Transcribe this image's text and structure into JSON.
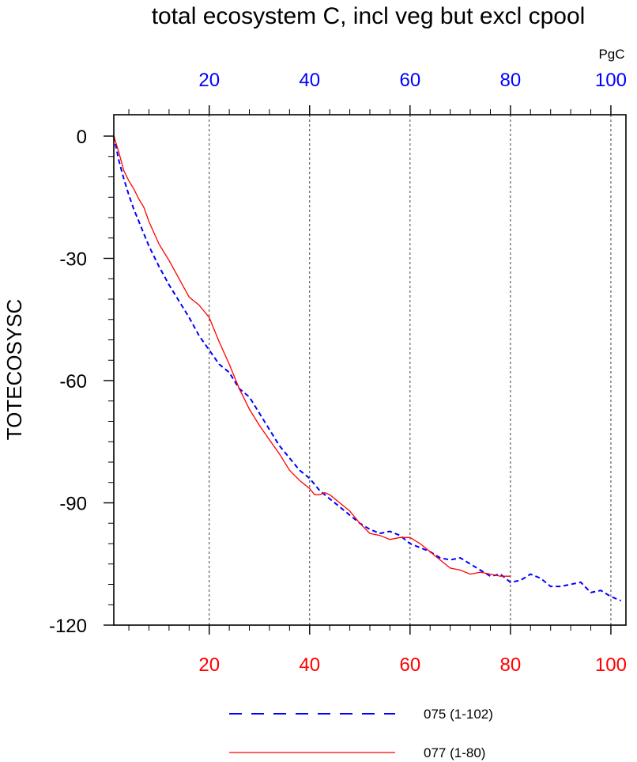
{
  "chart_data": {
    "type": "line",
    "title": "total ecosystem C, incl veg but excl cpool",
    "units": "PgC",
    "ylabel": "TOTECOSYSC",
    "xlim": [
      1,
      103
    ],
    "ylim": [
      -120,
      5
    ],
    "y_ticks": [
      0,
      -30,
      -60,
      -90,
      -120
    ],
    "x_ticks_bottom": [
      20,
      40,
      60,
      80,
      100
    ],
    "x_ticks_top": [
      20,
      40,
      60,
      80,
      100
    ],
    "grid": "vertical dashed lines at 20, 40, 60, 80, 100",
    "colors": {
      "bottom_axis": "#ff0000",
      "top_axis": "#0000ff"
    },
    "series": [
      {
        "name": "075 (1-102)",
        "color": "#0000ff",
        "dash": "dashed",
        "x": [
          1,
          2,
          3,
          4,
          5,
          6,
          7,
          8,
          9,
          10,
          12,
          14,
          16,
          18,
          20,
          22,
          24,
          26,
          28,
          30,
          32,
          34,
          36,
          38,
          40,
          42,
          44,
          46,
          48,
          50,
          52,
          54,
          56,
          58,
          60,
          62,
          64,
          66,
          68,
          70,
          72,
          74,
          76,
          78,
          80,
          82,
          84,
          86,
          88,
          90,
          92,
          94,
          96,
          98,
          100,
          102
        ],
        "values": [
          0,
          -6,
          -10.5,
          -14.5,
          -18,
          -21,
          -24,
          -27,
          -29.5,
          -32,
          -36.5,
          -40.5,
          -44.5,
          -49,
          -52.5,
          -56,
          -58,
          -62,
          -64,
          -68,
          -72,
          -76,
          -79,
          -82,
          -84,
          -87,
          -89,
          -91,
          -93,
          -95,
          -96.5,
          -97.5,
          -97,
          -98,
          -100,
          -101,
          -102,
          -103.5,
          -104,
          -103.5,
          -105,
          -106.5,
          -108,
          -107.5,
          -109.5,
          -109,
          -107.5,
          -108.5,
          -110.5,
          -110.5,
          -110,
          -109.5,
          -112,
          -111.5,
          -113,
          -114
        ]
      },
      {
        "name": "077 (1-80)",
        "color": "#ff0000",
        "dash": "solid",
        "x": [
          1,
          2,
          3,
          4,
          5,
          6,
          7,
          8,
          10,
          12,
          14,
          16,
          18,
          20,
          22,
          24,
          26,
          28,
          30,
          32,
          34,
          36,
          38,
          40,
          41,
          42,
          43,
          44,
          46,
          48,
          50,
          52,
          54,
          56,
          58,
          60,
          62,
          64,
          66,
          68,
          70,
          72,
          74,
          76,
          78,
          80
        ],
        "values": [
          0,
          -4,
          -8.5,
          -11,
          -13,
          -15.5,
          -17.5,
          -21,
          -26.5,
          -30.5,
          -35,
          -39.5,
          -41.5,
          -44.5,
          -50.5,
          -56,
          -62,
          -67,
          -71,
          -74.5,
          -78,
          -82,
          -84.5,
          -86.5,
          -88,
          -88,
          -87.5,
          -88,
          -90,
          -92,
          -95,
          -97.5,
          -98,
          -99,
          -98.5,
          -98.5,
          -100,
          -102,
          -104,
          -106,
          -106.5,
          -107.5,
          -107,
          -107.5,
          -108,
          -108
        ]
      }
    ]
  }
}
